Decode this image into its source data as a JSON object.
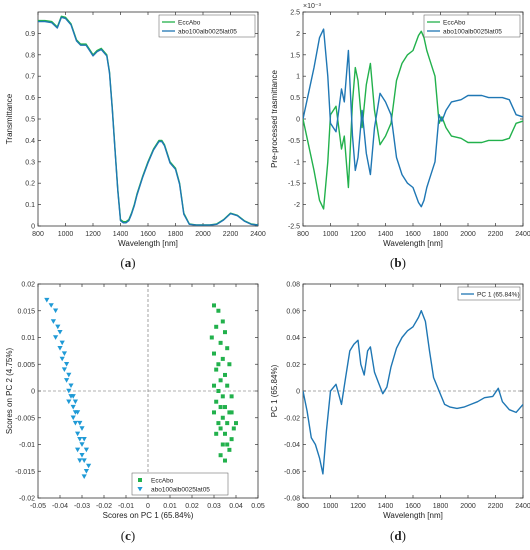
{
  "chart_data": [
    {
      "panel": "a",
      "type": "line",
      "xlabel": "Wavelength [nm]",
      "ylabel": "Transmittance",
      "xlim": [
        800,
        2400
      ],
      "ylim": [
        0,
        1.0
      ],
      "xticks": [
        800,
        1000,
        1200,
        1400,
        1600,
        1800,
        2000,
        2200,
        2400
      ],
      "yticks": [
        0,
        0.1,
        0.2,
        0.3,
        0.4,
        0.5,
        0.6,
        0.7,
        0.8,
        0.9
      ],
      "legend_position": "top-right",
      "series": [
        {
          "name": "EccAbo",
          "color": "#22b14c",
          "x": [
            800,
            850,
            900,
            940,
            970,
            1000,
            1040,
            1080,
            1110,
            1150,
            1180,
            1200,
            1230,
            1260,
            1300,
            1320,
            1340,
            1360,
            1380,
            1400,
            1420,
            1440,
            1460,
            1480,
            1500,
            1520,
            1560,
            1600,
            1640,
            1680,
            1700,
            1720,
            1760,
            1800,
            1830,
            1860,
            1900,
            1950,
            2000,
            2050,
            2100,
            2150,
            2200,
            2250,
            2300,
            2350,
            2400
          ],
          "y": [
            0.96,
            0.96,
            0.955,
            0.93,
            0.98,
            0.975,
            0.945,
            0.87,
            0.85,
            0.85,
            0.82,
            0.8,
            0.82,
            0.83,
            0.8,
            0.72,
            0.55,
            0.36,
            0.17,
            0.03,
            0.02,
            0.02,
            0.03,
            0.06,
            0.1,
            0.15,
            0.23,
            0.3,
            0.36,
            0.4,
            0.4,
            0.38,
            0.3,
            0.27,
            0.2,
            0.06,
            0.01,
            0.005,
            0.005,
            0.005,
            0.01,
            0.03,
            0.06,
            0.05,
            0.025,
            0.01,
            0.005
          ]
        },
        {
          "name": "abo100alb0025lat05",
          "color": "#1f77b4",
          "x": [
            800,
            850,
            900,
            940,
            970,
            1000,
            1040,
            1080,
            1110,
            1150,
            1180,
            1200,
            1230,
            1260,
            1300,
            1320,
            1340,
            1360,
            1380,
            1400,
            1420,
            1440,
            1460,
            1480,
            1500,
            1520,
            1560,
            1600,
            1640,
            1680,
            1700,
            1720,
            1760,
            1800,
            1830,
            1860,
            1900,
            1950,
            2000,
            2050,
            2100,
            2150,
            2200,
            2250,
            2300,
            2350,
            2400
          ],
          "y": [
            0.955,
            0.955,
            0.95,
            0.925,
            0.975,
            0.97,
            0.94,
            0.865,
            0.845,
            0.845,
            0.815,
            0.795,
            0.815,
            0.825,
            0.795,
            0.715,
            0.545,
            0.355,
            0.165,
            0.025,
            0.015,
            0.015,
            0.025,
            0.055,
            0.095,
            0.145,
            0.225,
            0.295,
            0.355,
            0.395,
            0.395,
            0.375,
            0.295,
            0.265,
            0.195,
            0.055,
            0.008,
            0.004,
            0.004,
            0.004,
            0.008,
            0.028,
            0.058,
            0.048,
            0.023,
            0.008,
            0.004
          ]
        }
      ]
    },
    {
      "panel": "b",
      "type": "line",
      "xlabel": "Wavelength [nm]",
      "ylabel": "Pre-processed trasmittance",
      "yexponent": "×10⁻³",
      "xlim": [
        800,
        2400
      ],
      "ylim": [
        -2.5,
        2.5
      ],
      "xticks": [
        800,
        1000,
        1200,
        1400,
        1600,
        1800,
        2000,
        2200,
        2400
      ],
      "yticks": [
        -2.5,
        -2,
        -1.5,
        -1,
        -0.5,
        0,
        0.5,
        1,
        1.5,
        2,
        2.5
      ],
      "legend_position": "top-right",
      "series": [
        {
          "name": "EccAbo",
          "color": "#22b14c",
          "x": [
            800,
            840,
            880,
            920,
            950,
            980,
            1000,
            1040,
            1080,
            1100,
            1130,
            1160,
            1180,
            1200,
            1230,
            1260,
            1290,
            1320,
            1360,
            1400,
            1440,
            1480,
            1520,
            1560,
            1600,
            1640,
            1660,
            1680,
            1700,
            1720,
            1760,
            1790,
            1810,
            1840,
            1880,
            1950,
            2000,
            2050,
            2100,
            2150,
            2200,
            2250,
            2300,
            2350,
            2400
          ],
          "y": [
            0.0,
            -0.6,
            -1.2,
            -1.9,
            -2.1,
            -1.0,
            0.1,
            0.3,
            -0.7,
            -0.4,
            -1.6,
            0.4,
            1.2,
            0.9,
            -0.2,
            0.8,
            1.3,
            0.2,
            -0.6,
            -0.4,
            -0.1,
            0.9,
            1.3,
            1.5,
            1.6,
            1.95,
            2.05,
            1.9,
            1.6,
            1.4,
            1.0,
            -0.1,
            0.05,
            -0.2,
            -0.4,
            -0.45,
            -0.55,
            -0.55,
            -0.55,
            -0.5,
            -0.5,
            -0.5,
            -0.45,
            -0.1,
            -0.05
          ]
        },
        {
          "name": "abo100alb0025lat05",
          "color": "#1f77b4",
          "x": [
            800,
            840,
            880,
            920,
            950,
            980,
            1000,
            1040,
            1080,
            1100,
            1130,
            1160,
            1180,
            1200,
            1230,
            1260,
            1290,
            1320,
            1360,
            1400,
            1440,
            1480,
            1520,
            1560,
            1600,
            1640,
            1660,
            1680,
            1700,
            1720,
            1760,
            1790,
            1810,
            1840,
            1880,
            1950,
            2000,
            2050,
            2100,
            2150,
            2200,
            2250,
            2300,
            2350,
            2400
          ],
          "y": [
            0.0,
            0.6,
            1.2,
            1.9,
            2.1,
            1.0,
            -0.1,
            -0.3,
            0.7,
            0.4,
            1.6,
            -0.4,
            -1.2,
            -0.9,
            0.2,
            -0.8,
            -1.3,
            -0.2,
            0.6,
            0.4,
            0.1,
            -0.9,
            -1.3,
            -1.5,
            -1.6,
            -1.95,
            -2.05,
            -1.9,
            -1.6,
            -1.4,
            -1.0,
            0.1,
            -0.05,
            0.2,
            0.4,
            0.45,
            0.55,
            0.55,
            0.55,
            0.5,
            0.5,
            0.5,
            0.45,
            0.1,
            0.05
          ]
        }
      ]
    },
    {
      "panel": "c",
      "type": "scatter",
      "xlabel": "Scores on PC 1 (65.84%)",
      "ylabel": "Scores on PC 2 (4.75%)",
      "xlim": [
        -0.05,
        0.05
      ],
      "ylim": [
        -0.02,
        0.02
      ],
      "xticks": [
        -0.05,
        -0.04,
        -0.03,
        -0.02,
        -0.01,
        0,
        0.01,
        0.02,
        0.03,
        0.04,
        0.05
      ],
      "yticks": [
        -0.02,
        -0.015,
        -0.01,
        -0.005,
        0,
        0.005,
        0.01,
        0.015,
        0.02
      ],
      "legend_position": "bottom-right",
      "series": [
        {
          "name": "EccAbo",
          "color": "#22b14c",
          "marker": "square",
          "x": [
            0.03,
            0.032,
            0.034,
            0.031,
            0.035,
            0.029,
            0.033,
            0.036,
            0.03,
            0.034,
            0.032,
            0.037,
            0.031,
            0.035,
            0.033,
            0.03,
            0.036,
            0.032,
            0.034,
            0.038,
            0.031,
            0.033,
            0.035,
            0.037,
            0.03,
            0.034,
            0.032,
            0.036,
            0.039,
            0.033,
            0.031,
            0.035,
            0.038,
            0.034,
            0.036,
            0.037,
            0.033,
            0.035,
            0.04,
            0.038
          ],
          "y": [
            0.016,
            0.015,
            0.013,
            0.012,
            0.011,
            0.01,
            0.009,
            0.008,
            0.007,
            0.006,
            0.005,
            0.005,
            0.004,
            0.003,
            0.002,
            0.001,
            0.001,
            0.0,
            -0.001,
            -0.001,
            -0.002,
            -0.003,
            -0.003,
            -0.004,
            -0.004,
            -0.005,
            -0.006,
            -0.006,
            -0.007,
            -0.007,
            -0.008,
            -0.008,
            -0.009,
            -0.01,
            -0.01,
            -0.011,
            -0.012,
            -0.013,
            -0.006,
            -0.004
          ]
        },
        {
          "name": "abo100alb0025lat05",
          "color": "#1f9ad6",
          "marker": "triangle-down",
          "x": [
            -0.046,
            -0.044,
            -0.042,
            -0.043,
            -0.041,
            -0.04,
            -0.042,
            -0.039,
            -0.04,
            -0.038,
            -0.039,
            -0.037,
            -0.038,
            -0.036,
            -0.037,
            -0.035,
            -0.036,
            -0.034,
            -0.035,
            -0.033,
            -0.036,
            -0.034,
            -0.033,
            -0.032,
            -0.034,
            -0.031,
            -0.033,
            -0.03,
            -0.032,
            -0.031,
            -0.029,
            -0.03,
            -0.032,
            -0.028,
            -0.03,
            -0.029,
            -0.027,
            -0.028,
            -0.031,
            -0.029
          ],
          "y": [
            0.017,
            0.016,
            0.015,
            0.013,
            0.012,
            0.011,
            0.01,
            0.009,
            0.008,
            0.007,
            0.006,
            0.005,
            0.004,
            0.003,
            0.002,
            0.001,
            0.0,
            -0.001,
            -0.001,
            -0.002,
            -0.002,
            -0.003,
            -0.004,
            -0.004,
            -0.005,
            -0.006,
            -0.006,
            -0.007,
            -0.008,
            -0.009,
            -0.009,
            -0.01,
            -0.011,
            -0.011,
            -0.012,
            -0.013,
            -0.014,
            -0.015,
            -0.013,
            -0.016
          ]
        }
      ]
    },
    {
      "panel": "d",
      "type": "line",
      "xlabel": "Wavelength [nm]",
      "ylabel": "PC 1 (65.84%)",
      "xlim": [
        800,
        2400
      ],
      "ylim": [
        -0.08,
        0.08
      ],
      "xticks": [
        800,
        1000,
        1200,
        1400,
        1600,
        1800,
        2000,
        2200,
        2400
      ],
      "yticks": [
        -0.08,
        -0.06,
        -0.04,
        -0.02,
        0,
        0.02,
        0.04,
        0.06,
        0.08
      ],
      "legend_position": "top-right",
      "series": [
        {
          "name": "PC 1 (65.84%)",
          "color": "#1f77b4",
          "x": [
            800,
            830,
            860,
            890,
            920,
            945,
            970,
            1000,
            1040,
            1080,
            1110,
            1140,
            1170,
            1200,
            1220,
            1245,
            1270,
            1290,
            1320,
            1350,
            1380,
            1410,
            1440,
            1480,
            1520,
            1560,
            1600,
            1640,
            1660,
            1690,
            1720,
            1750,
            1790,
            1830,
            1870,
            1920,
            1970,
            2020,
            2070,
            2120,
            2180,
            2220,
            2250,
            2300,
            2350,
            2400
          ],
          "y": [
            0.0,
            -0.015,
            -0.035,
            -0.04,
            -0.05,
            -0.062,
            -0.03,
            0.0,
            0.005,
            -0.01,
            0.01,
            0.03,
            0.035,
            0.038,
            0.02,
            0.012,
            0.03,
            0.033,
            0.014,
            0.006,
            -0.002,
            0.003,
            0.018,
            0.032,
            0.04,
            0.045,
            0.048,
            0.055,
            0.06,
            0.052,
            0.03,
            0.01,
            0.0,
            -0.01,
            -0.012,
            -0.013,
            -0.012,
            -0.01,
            -0.008,
            -0.005,
            -0.004,
            0.002,
            -0.008,
            -0.014,
            -0.016,
            -0.01
          ]
        }
      ]
    }
  ],
  "panel_labels": [
    "a",
    "b",
    "c",
    "d"
  ]
}
